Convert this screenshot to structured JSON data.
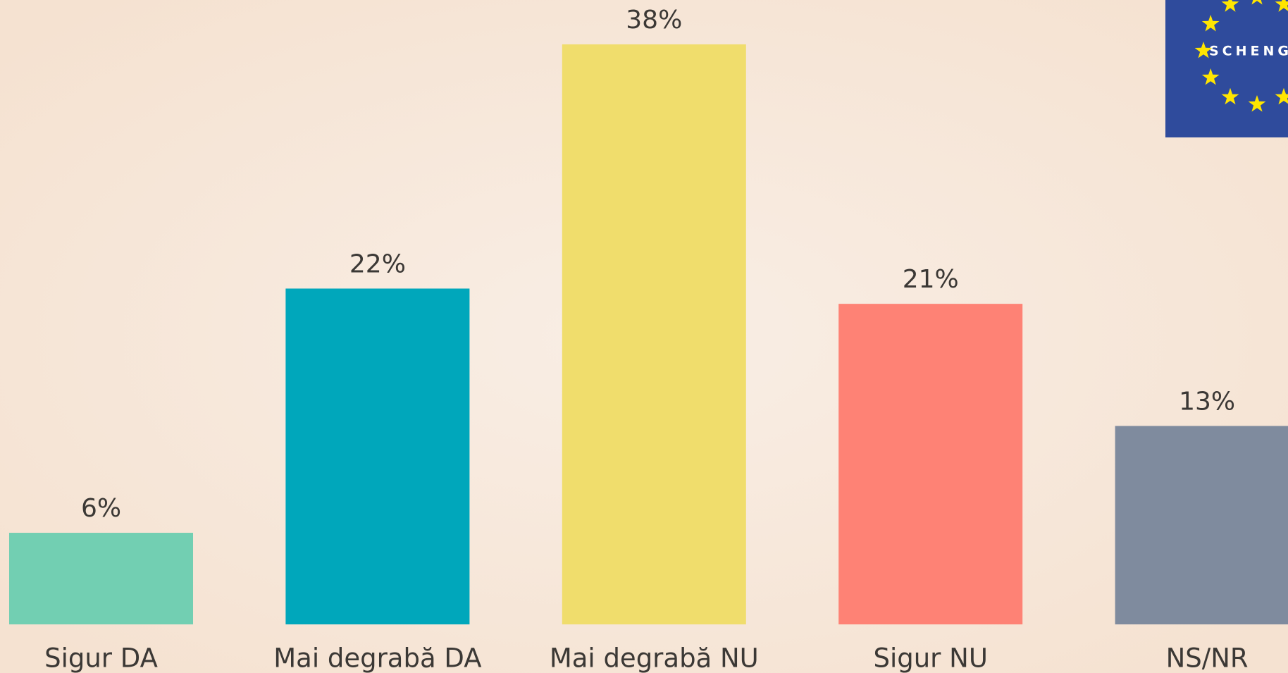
{
  "chart_data": {
    "type": "bar",
    "categories": [
      "Sigur DA",
      "Mai degrabă DA",
      "Mai degrabă NU",
      "Sigur NU",
      "NS/NR"
    ],
    "values": [
      6,
      22,
      38,
      21,
      13
    ],
    "value_labels": [
      "6%",
      "22%",
      "38%",
      "21%",
      "13%"
    ],
    "colors": [
      "#72cfb2",
      "#00a7bb",
      "#f0dd6c",
      "#fe8275",
      "#7f8b9e"
    ]
  },
  "logo": {
    "text": "SCHENGEN"
  }
}
